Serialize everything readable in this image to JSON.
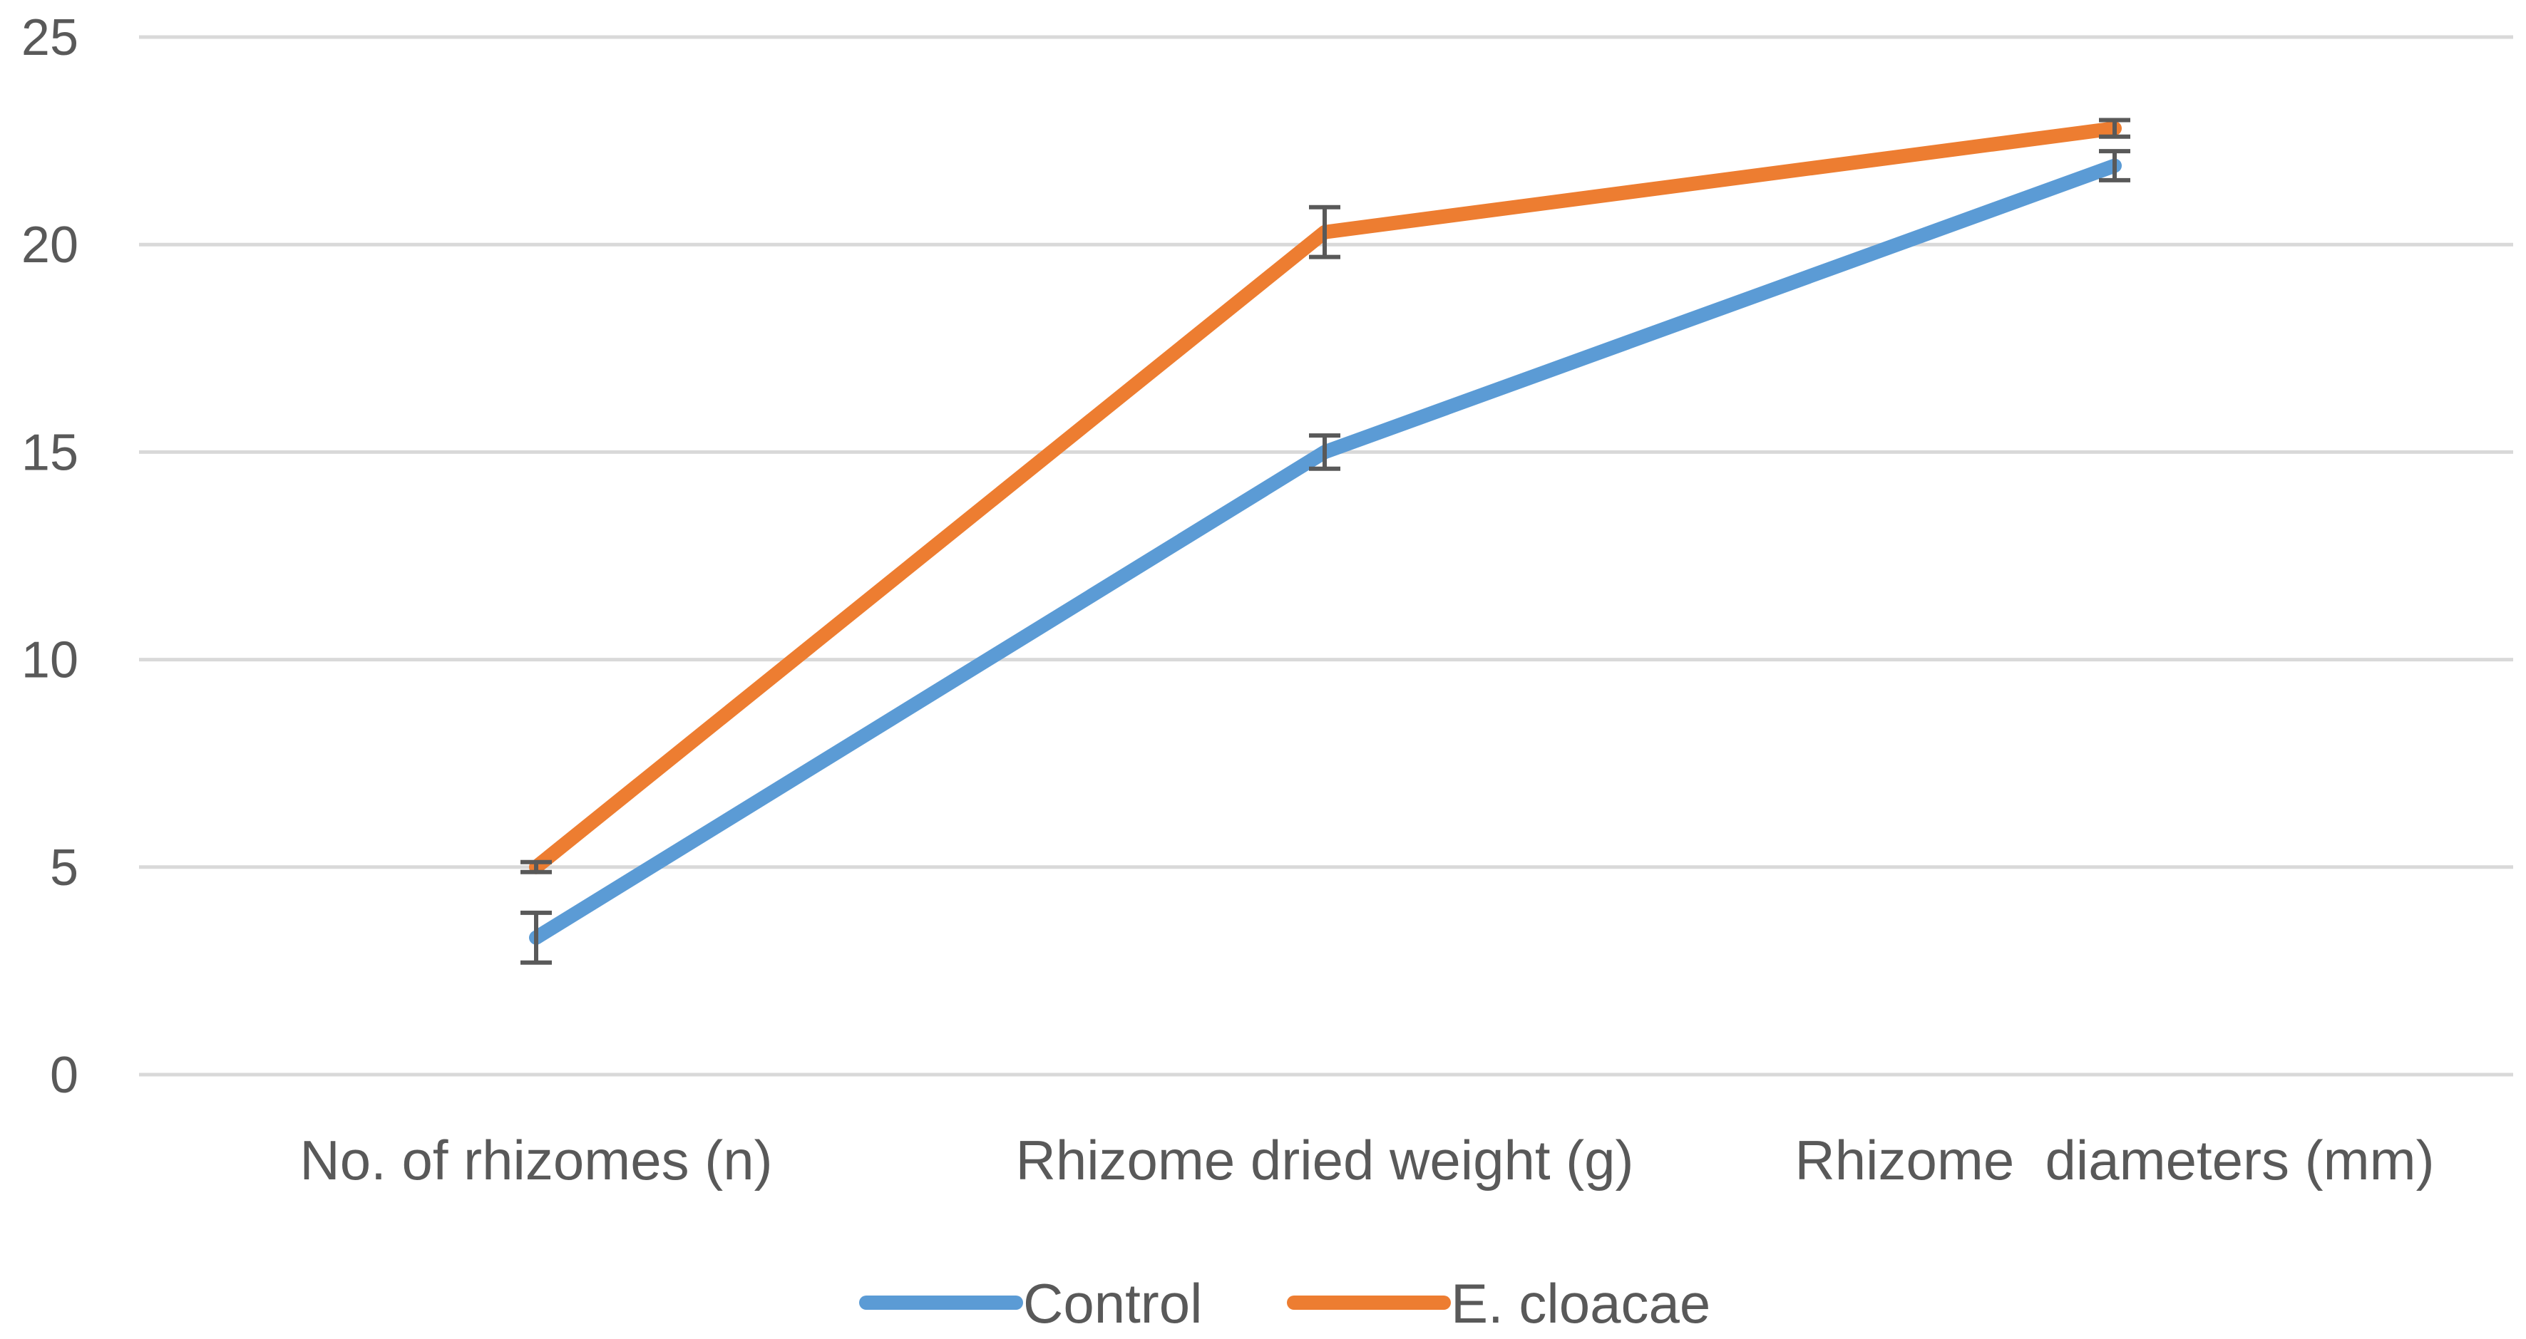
{
  "chart_data": {
    "type": "line",
    "categories": [
      "No. of rhizomes (n)",
      "Rhizome dried weight (g)",
      "Rhizome  diameters (mm)"
    ],
    "ylim": [
      0,
      25
    ],
    "yticks": [
      0,
      5,
      10,
      15,
      20,
      25
    ],
    "grid": true,
    "legend_position": "bottom",
    "series": [
      {
        "name": "Control",
        "color": "#5B9BD5",
        "values": [
          3.3,
          15.0,
          21.9
        ],
        "errors": [
          0.6,
          0.4,
          0.35
        ]
      },
      {
        "name": "E. cloacae",
        "color": "#ED7D31",
        "values": [
          5.0,
          20.3,
          22.8
        ],
        "errors": [
          0.12,
          0.6,
          0.2
        ]
      }
    ]
  }
}
